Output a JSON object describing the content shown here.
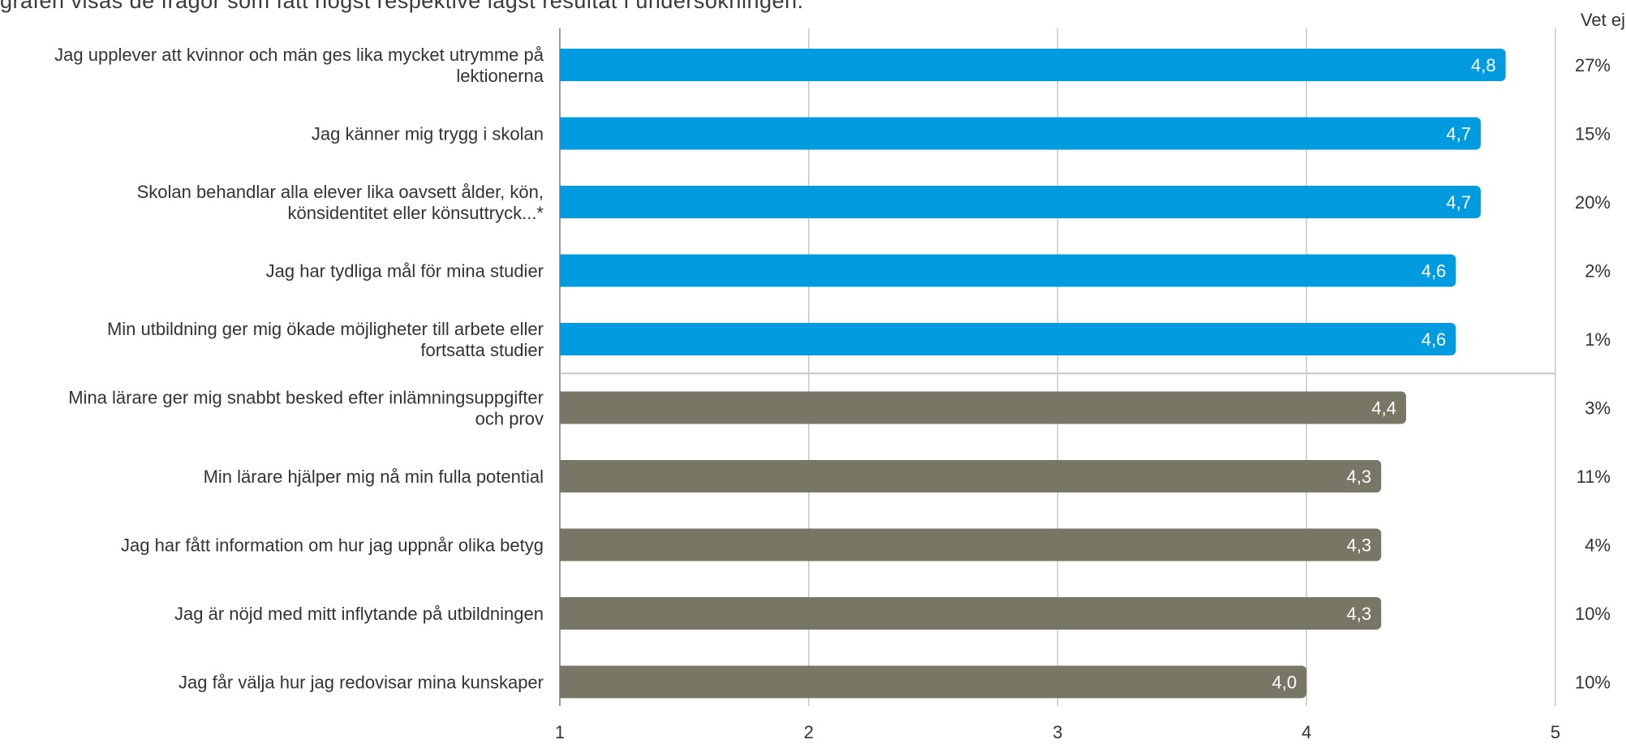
{
  "intro_text": "grafen visas de frågor som fått högst respektive lägst resultat i undersökningen.",
  "colors": {
    "top": "#039be0",
    "bottom": "#787766",
    "grid": "#c8c8c8",
    "axis": "#9a9a9a"
  },
  "chart_data": {
    "type": "bar",
    "orientation": "horizontal",
    "categories": [
      "Jag upplever att kvinnor och män ges lika mycket utrymme på lektionerna",
      "Jag känner mig trygg i skolan",
      "Skolan behandlar alla elever lika oavsett ålder, kön, könsidentitet eller könsuttryck...*",
      "Jag har tydliga mål för mina studier",
      "Min utbildning ger mig ökade möjligheter till arbete eller fortsatta studier",
      "Mina lärare ger mig snabbt besked efter inlämningsuppgifter och prov",
      "Min lärare hjälper mig nå min fulla potential",
      "Jag har fått information om hur jag uppnår olika betyg",
      "Jag är nöjd med mitt inflytande på utbildningen",
      "Jag får välja hur jag redovisar mina kunskaper"
    ],
    "category_lines": [
      [
        "Jag upplever att kvinnor och män ges lika mycket utrymme på",
        "lektionerna"
      ],
      [
        "Jag känner mig trygg i skolan"
      ],
      [
        "Skolan behandlar alla elever lika oavsett ålder, kön,",
        "könsidentitet eller könsuttryck...*"
      ],
      [
        "Jag har tydliga mål för mina studier"
      ],
      [
        "Min utbildning ger mig ökade möjligheter till arbete eller",
        "fortsatta studier"
      ],
      [
        "Mina lärare ger mig snabbt besked efter inlämningsuppgifter",
        "och prov"
      ],
      [
        "Min lärare hjälper mig nå min fulla potential"
      ],
      [
        "Jag har fått information om hur jag uppnår olika betyg"
      ],
      [
        "Jag är nöjd med mitt inflytande på utbildningen"
      ],
      [
        "Jag får välja hur jag redovisar mina kunskaper"
      ]
    ],
    "values": [
      4.8,
      4.7,
      4.7,
      4.6,
      4.6,
      4.4,
      4.3,
      4.3,
      4.3,
      4.0
    ],
    "value_labels": [
      "4,8",
      "4,7",
      "4,7",
      "4,6",
      "4,6",
      "4,4",
      "4,3",
      "4,3",
      "4,3",
      "4,0"
    ],
    "group": [
      "top",
      "top",
      "top",
      "top",
      "top",
      "bottom",
      "bottom",
      "bottom",
      "bottom",
      "bottom"
    ],
    "vet_ej_header": "Vet ej",
    "vet_ej": [
      "27%",
      "15%",
      "20%",
      "2%",
      "1%",
      "3%",
      "11%",
      "4%",
      "10%",
      "10%"
    ],
    "xlim": [
      1,
      5
    ],
    "xticks": [
      "1",
      "2",
      "3",
      "4",
      "5"
    ],
    "grid": true
  }
}
